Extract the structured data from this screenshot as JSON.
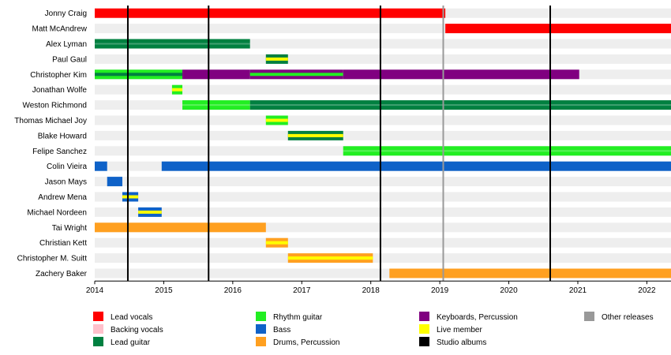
{
  "chart_data": {
    "type": "timeline",
    "title": "",
    "xlabel": "",
    "ylabel": "",
    "xlim": [
      2014.0,
      2022.35
    ],
    "ticks": [
      2014,
      2015,
      2016,
      2017,
      2018,
      2019,
      2020,
      2021,
      2022
    ],
    "colors": {
      "lead_vocals": "#ff0000",
      "backing_vocals": "#ffc0cb",
      "lead_guitar": "#008040",
      "rhythm_guitar": "#22ee22",
      "keyboards": "#800080",
      "bass": "#0f62c8",
      "drums": "#ffa020",
      "live": "#ffff00",
      "studio": "#000000",
      "other": "#999999"
    },
    "members": [
      {
        "name": "Jonny Craig",
        "spans": [
          {
            "start": 2014.0,
            "end": 2019.08,
            "roles": [
              "lead_vocals"
            ]
          }
        ]
      },
      {
        "name": "Matt McAndrew",
        "spans": [
          {
            "start": 2019.08,
            "end": 2022.35,
            "roles": [
              "lead_vocals"
            ]
          }
        ]
      },
      {
        "name": "Alex Lyman",
        "spans": [
          {
            "start": 2014.0,
            "end": 2016.25,
            "roles": [
              "lead_guitar"
            ]
          }
        ]
      },
      {
        "name": "Paul Gaul",
        "spans": [
          {
            "start": 2016.48,
            "end": 2016.8,
            "roles": [
              "lead_guitar",
              "live"
            ]
          }
        ]
      },
      {
        "name": "Christopher Kim",
        "spans": [
          {
            "start": 2014.0,
            "end": 2015.27,
            "roles": [
              "rhythm_guitar",
              "lead_guitar"
            ]
          },
          {
            "start": 2015.27,
            "end": 2016.25,
            "roles": [
              "keyboards"
            ]
          },
          {
            "start": 2016.25,
            "end": 2017.6,
            "roles": [
              "rhythm_guitar",
              "keyboards"
            ]
          },
          {
            "start": 2017.6,
            "end": 2021.02,
            "roles": [
              "keyboards"
            ]
          }
        ]
      },
      {
        "name": "Jonathan Wolfe",
        "spans": [
          {
            "start": 2015.12,
            "end": 2015.27,
            "roles": [
              "rhythm_guitar",
              "live"
            ]
          }
        ]
      },
      {
        "name": "Weston Richmond",
        "spans": [
          {
            "start": 2015.27,
            "end": 2016.25,
            "roles": [
              "rhythm_guitar"
            ]
          },
          {
            "start": 2016.25,
            "end": 2022.35,
            "roles": [
              "lead_guitar"
            ]
          }
        ]
      },
      {
        "name": "Thomas Michael Joy",
        "spans": [
          {
            "start": 2016.48,
            "end": 2016.8,
            "roles": [
              "rhythm_guitar",
              "live"
            ]
          }
        ]
      },
      {
        "name": "Blake Howard",
        "spans": [
          {
            "start": 2016.8,
            "end": 2017.6,
            "roles": [
              "lead_guitar",
              "live"
            ]
          }
        ]
      },
      {
        "name": "Felipe Sanchez",
        "spans": [
          {
            "start": 2017.6,
            "end": 2022.35,
            "roles": [
              "rhythm_guitar"
            ]
          }
        ]
      },
      {
        "name": "Colin Vieira",
        "spans": [
          {
            "start": 2014.0,
            "end": 2014.18,
            "roles": [
              "bass"
            ]
          },
          {
            "start": 2014.97,
            "end": 2022.35,
            "roles": [
              "bass"
            ]
          }
        ]
      },
      {
        "name": "Jason Mays",
        "spans": [
          {
            "start": 2014.18,
            "end": 2014.4,
            "roles": [
              "bass"
            ]
          }
        ]
      },
      {
        "name": "Andrew Mena",
        "spans": [
          {
            "start": 2014.4,
            "end": 2014.63,
            "roles": [
              "bass",
              "live"
            ]
          }
        ]
      },
      {
        "name": "Michael Nordeen",
        "spans": [
          {
            "start": 2014.63,
            "end": 2014.97,
            "roles": [
              "bass",
              "live"
            ]
          }
        ]
      },
      {
        "name": "Tai Wright",
        "spans": [
          {
            "start": 2014.0,
            "end": 2016.48,
            "roles": [
              "drums"
            ]
          }
        ]
      },
      {
        "name": "Christian Kett",
        "spans": [
          {
            "start": 2016.48,
            "end": 2016.8,
            "roles": [
              "drums",
              "live"
            ]
          }
        ]
      },
      {
        "name": "Christopher M. Suitt",
        "spans": [
          {
            "start": 2016.8,
            "end": 2018.03,
            "roles": [
              "drums",
              "live"
            ]
          }
        ]
      },
      {
        "name": "Zachery Baker",
        "spans": [
          {
            "start": 2018.27,
            "end": 2022.35,
            "roles": [
              "drums"
            ]
          }
        ]
      }
    ],
    "studio_albums": [
      2014.48,
      2015.65,
      2018.14,
      2020.6
    ],
    "other_releases": [
      2019.05
    ],
    "legend": [
      {
        "label": "Lead vocals",
        "color": "#ff0000"
      },
      {
        "label": "Backing vocals",
        "color": "#ffc0cb"
      },
      {
        "label": "Lead guitar",
        "color": "#008040"
      },
      {
        "label": "Rhythm guitar",
        "color": "#22ee22"
      },
      {
        "label": "Bass",
        "color": "#0f62c8"
      },
      {
        "label": "Drums, Percussion",
        "color": "#ffa020"
      },
      {
        "label": "Keyboards, Percussion",
        "color": "#800080"
      },
      {
        "label": "Live member",
        "color": "#ffff00"
      },
      {
        "label": "Studio albums",
        "color": "#000000"
      },
      {
        "label": "Other releases",
        "color": "#999999"
      }
    ]
  }
}
